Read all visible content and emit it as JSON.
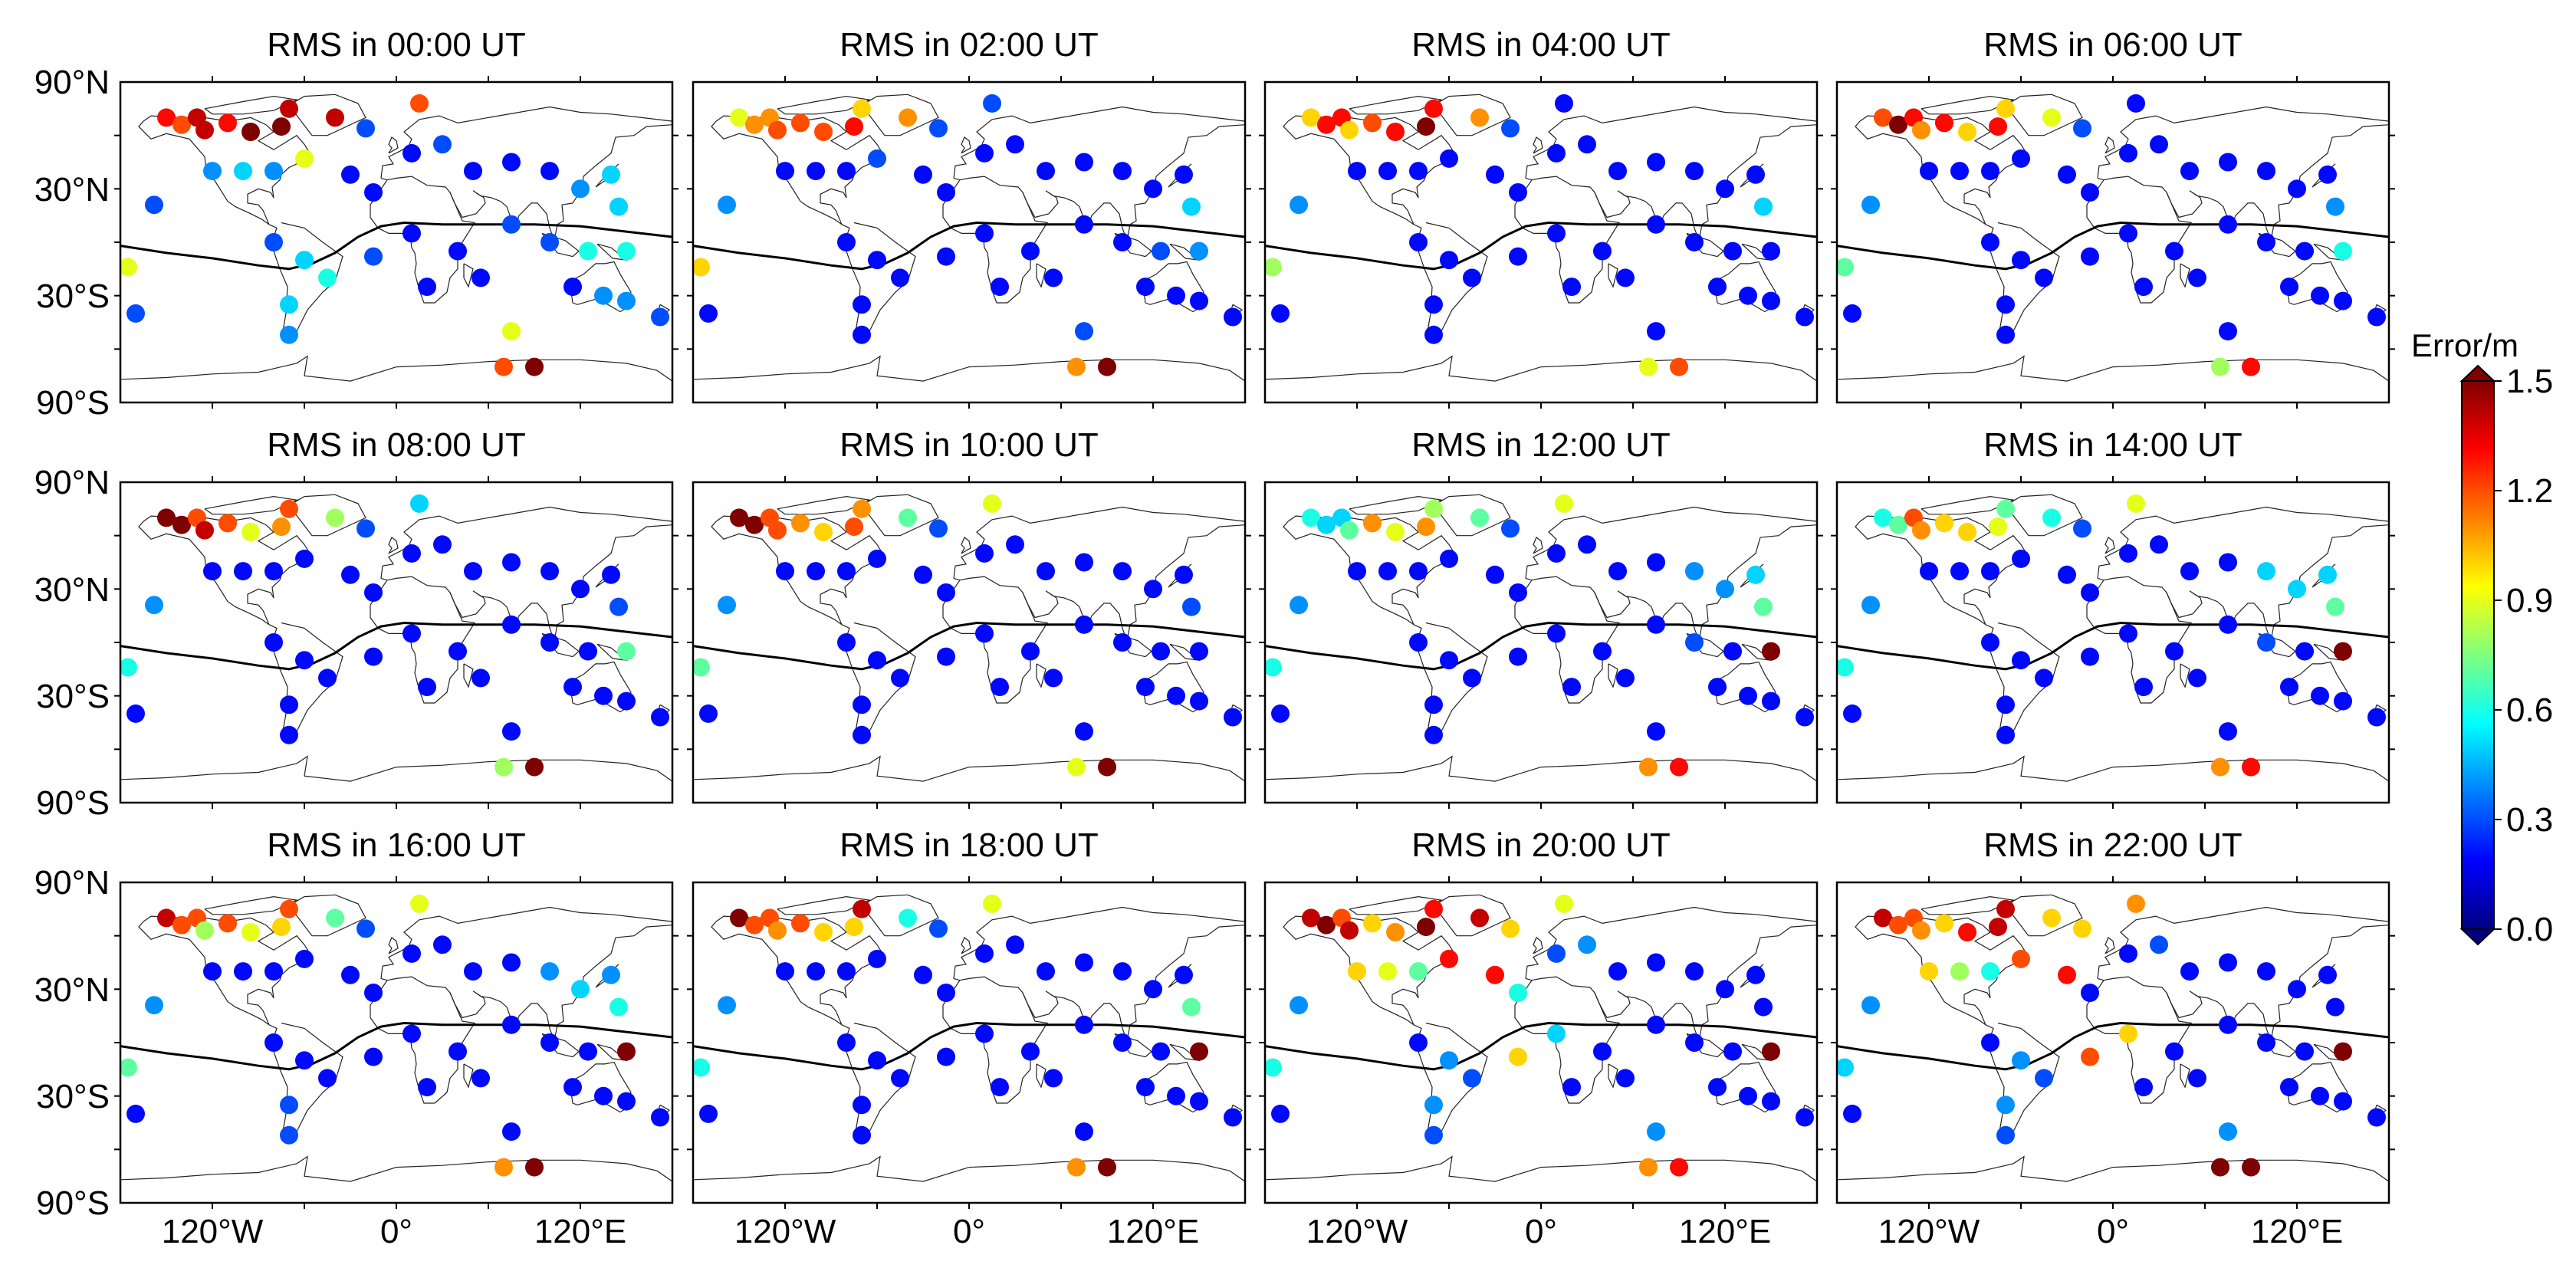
{
  "figure": {
    "panels": [
      {
        "title": "RMS in 00:00 UT"
      },
      {
        "title": "RMS in 02:00 UT"
      },
      {
        "title": "RMS in 04:00 UT"
      },
      {
        "title": "RMS in 06:00 UT"
      },
      {
        "title": "RMS in 08:00 UT"
      },
      {
        "title": "RMS in 10:00 UT"
      },
      {
        "title": "RMS in 12:00 UT"
      },
      {
        "title": "RMS in 14:00 UT"
      },
      {
        "title": "RMS in 16:00 UT"
      },
      {
        "title": "RMS in 18:00 UT"
      },
      {
        "title": "RMS in 20:00 UT"
      },
      {
        "title": "RMS in 22:00 UT"
      }
    ],
    "lat_ticks": [
      "90°N",
      "30°N",
      "30°S",
      "90°S"
    ],
    "lon_ticks": [
      "120°W",
      "0°",
      "120°E"
    ],
    "colorbar": {
      "title": "Error/m",
      "ticks": [
        "0.0",
        "0.3",
        "0.6",
        "0.9",
        "1.2",
        "1.5"
      ],
      "min": 0.0,
      "max": 1.5,
      "colormap": [
        "#00007f",
        "#0000ff",
        "#007fff",
        "#00ffff",
        "#7fff7f",
        "#ffff00",
        "#ff7f00",
        "#ff0000",
        "#7f0000"
      ]
    },
    "dip_equator_color": "#000000"
  },
  "chart_data": {
    "type": "scatter",
    "description_units": "RMS error in metres at GNSS stations",
    "xlim": [
      -180,
      180
    ],
    "ylim": [
      -90,
      90
    ],
    "stations": [
      {
        "lon": -150,
        "lat": 70,
        "v": [
          1.3,
          0.9,
          1.0,
          1.2,
          1.5,
          1.5,
          0.6,
          0.6,
          1.4,
          1.5,
          1.4,
          1.4
        ]
      },
      {
        "lon": -140,
        "lat": 66,
        "v": [
          1.2,
          1.1,
          1.3,
          1.5,
          1.5,
          1.5,
          0.5,
          0.7,
          1.2,
          1.2,
          1.5,
          1.2
        ]
      },
      {
        "lon": -130,
        "lat": 70,
        "v": [
          1.4,
          1.1,
          1.3,
          1.3,
          1.2,
          1.2,
          0.5,
          1.2,
          1.2,
          1.2,
          1.2,
          1.2
        ]
      },
      {
        "lon": -125,
        "lat": 63,
        "v": [
          1.4,
          1.2,
          1.0,
          1.1,
          1.4,
          1.2,
          0.7,
          1.1,
          0.8,
          1.1,
          1.4,
          1.1
        ]
      },
      {
        "lon": -110,
        "lat": 67,
        "v": [
          1.3,
          1.2,
          1.2,
          1.3,
          1.2,
          1.1,
          1.1,
          1.0,
          1.2,
          1.2,
          1.0,
          1.0
        ]
      },
      {
        "lon": -95,
        "lat": 62,
        "v": [
          1.5,
          1.2,
          1.3,
          1.0,
          0.9,
          1.0,
          0.9,
          1.0,
          0.9,
          1.0,
          1.1,
          1.3
        ]
      },
      {
        "lon": -75,
        "lat": 65,
        "v": [
          1.5,
          1.3,
          1.5,
          1.3,
          1.1,
          1.2,
          1.1,
          0.9,
          1.0,
          1.0,
          1.5,
          1.4
        ]
      },
      {
        "lon": -70,
        "lat": 75,
        "v": [
          1.4,
          1.0,
          1.3,
          1.0,
          1.2,
          1.1,
          0.8,
          0.7,
          1.2,
          1.4,
          1.3,
          1.4
        ]
      },
      {
        "lon": -40,
        "lat": 70,
        "v": [
          1.4,
          1.1,
          1.1,
          0.9,
          0.8,
          0.7,
          0.7,
          0.6,
          0.7,
          0.6,
          1.4,
          1.0
        ]
      },
      {
        "lon": -20,
        "lat": 64,
        "v": [
          0.3,
          0.3,
          0.3,
          0.3,
          0.3,
          0.3,
          0.3,
          0.3,
          0.3,
          0.3,
          1.0,
          1.0
        ]
      },
      {
        "lon": 15,
        "lat": 78,
        "v": [
          1.2,
          0.3,
          0.2,
          0.2,
          0.5,
          0.9,
          0.9,
          0.9,
          0.9,
          0.9,
          0.9,
          1.1
        ]
      },
      {
        "lon": -120,
        "lat": 40,
        "v": [
          0.4,
          0.2,
          0.2,
          0.2,
          0.2,
          0.2,
          0.2,
          0.2,
          0.2,
          0.2,
          1.0,
          1.0
        ]
      },
      {
        "lon": -100,
        "lat": 40,
        "v": [
          0.5,
          0.2,
          0.2,
          0.2,
          0.2,
          0.2,
          0.2,
          0.2,
          0.2,
          0.2,
          0.9,
          0.8
        ]
      },
      {
        "lon": -80,
        "lat": 40,
        "v": [
          0.4,
          0.2,
          0.2,
          0.2,
          0.2,
          0.2,
          0.2,
          0.2,
          0.2,
          0.2,
          0.7,
          0.6
        ]
      },
      {
        "lon": -60,
        "lat": 47,
        "v": [
          0.9,
          0.3,
          0.2,
          0.2,
          0.2,
          0.2,
          0.2,
          0.2,
          0.2,
          0.2,
          1.3,
          1.2
        ]
      },
      {
        "lon": -30,
        "lat": 38,
        "v": [
          0.2,
          0.2,
          0.2,
          0.2,
          0.2,
          0.2,
          0.2,
          0.2,
          0.2,
          0.2,
          1.3,
          1.3
        ]
      },
      {
        "lon": -15,
        "lat": 28,
        "v": [
          0.2,
          0.2,
          0.2,
          0.2,
          0.2,
          0.2,
          0.2,
          0.2,
          0.2,
          0.2,
          0.6,
          0.2
        ]
      },
      {
        "lon": 10,
        "lat": 50,
        "v": [
          0.2,
          0.2,
          0.2,
          0.2,
          0.2,
          0.2,
          0.2,
          0.2,
          0.2,
          0.2,
          0.3,
          0.2
        ]
      },
      {
        "lon": 30,
        "lat": 55,
        "v": [
          0.3,
          0.2,
          0.2,
          0.2,
          0.2,
          0.2,
          0.2,
          0.2,
          0.2,
          0.2,
          0.4,
          0.3
        ]
      },
      {
        "lon": 50,
        "lat": 40,
        "v": [
          0.2,
          0.2,
          0.2,
          0.2,
          0.2,
          0.2,
          0.2,
          0.2,
          0.2,
          0.2,
          0.2,
          0.2
        ]
      },
      {
        "lon": 75,
        "lat": 45,
        "v": [
          0.2,
          0.2,
          0.2,
          0.2,
          0.2,
          0.2,
          0.2,
          0.2,
          0.2,
          0.2,
          0.2,
          0.2
        ]
      },
      {
        "lon": 100,
        "lat": 40,
        "v": [
          0.2,
          0.2,
          0.2,
          0.2,
          0.2,
          0.2,
          0.4,
          0.5,
          0.4,
          0.2,
          0.2,
          0.2
        ]
      },
      {
        "lon": 120,
        "lat": 30,
        "v": [
          0.4,
          0.2,
          0.2,
          0.2,
          0.2,
          0.2,
          0.4,
          0.5,
          0.5,
          0.2,
          0.2,
          0.2
        ]
      },
      {
        "lon": 140,
        "lat": 38,
        "v": [
          0.5,
          0.2,
          0.2,
          0.2,
          0.2,
          0.2,
          0.5,
          0.5,
          0.4,
          0.2,
          0.2,
          0.2
        ]
      },
      {
        "lon": 145,
        "lat": 20,
        "v": [
          0.5,
          0.5,
          0.5,
          0.4,
          0.3,
          0.3,
          0.7,
          0.7,
          0.6,
          0.7,
          0.2,
          0.2
        ]
      },
      {
        "lon": -158,
        "lat": 21,
        "v": [
          0.3,
          0.4,
          0.4,
          0.4,
          0.4,
          0.4,
          0.4,
          0.4,
          0.4,
          0.4,
          0.4,
          0.4
        ]
      },
      {
        "lon": -175,
        "lat": -14,
        "v": [
          0.9,
          1.0,
          0.8,
          0.7,
          0.6,
          0.7,
          0.6,
          0.6,
          0.7,
          0.6,
          0.6,
          0.5
        ]
      },
      {
        "lon": -170,
        "lat": -40,
        "v": [
          0.3,
          0.2,
          0.2,
          0.2,
          0.2,
          0.2,
          0.2,
          0.2,
          0.2,
          0.2,
          0.2,
          0.2
        ]
      },
      {
        "lon": -80,
        "lat": 0,
        "v": [
          0.3,
          0.2,
          0.2,
          0.2,
          0.2,
          0.2,
          0.2,
          0.2,
          0.2,
          0.2,
          0.2,
          0.2
        ]
      },
      {
        "lon": -60,
        "lat": -10,
        "v": [
          0.5,
          0.2,
          0.2,
          0.2,
          0.2,
          0.2,
          0.2,
          0.2,
          0.2,
          0.2,
          0.4,
          0.4
        ]
      },
      {
        "lon": -45,
        "lat": -20,
        "v": [
          0.6,
          0.2,
          0.2,
          0.2,
          0.2,
          0.2,
          0.2,
          0.2,
          0.2,
          0.2,
          0.3,
          0.3
        ]
      },
      {
        "lon": -70,
        "lat": -35,
        "v": [
          0.5,
          0.2,
          0.2,
          0.2,
          0.2,
          0.2,
          0.2,
          0.2,
          0.3,
          0.2,
          0.4,
          0.4
        ]
      },
      {
        "lon": -70,
        "lat": -52,
        "v": [
          0.4,
          0.2,
          0.2,
          0.2,
          0.2,
          0.2,
          0.2,
          0.2,
          0.3,
          0.2,
          0.3,
          0.3
        ]
      },
      {
        "lon": -15,
        "lat": -8,
        "v": [
          0.3,
          0.2,
          0.2,
          0.2,
          0.2,
          0.2,
          0.2,
          0.2,
          0.2,
          0.2,
          1.0,
          1.2
        ]
      },
      {
        "lon": 10,
        "lat": 5,
        "v": [
          0.2,
          0.2,
          0.2,
          0.2,
          0.2,
          0.2,
          0.2,
          0.2,
          0.2,
          0.2,
          0.5,
          1.0
        ]
      },
      {
        "lon": 20,
        "lat": -25,
        "v": [
          0.2,
          0.2,
          0.2,
          0.2,
          0.2,
          0.2,
          0.2,
          0.2,
          0.2,
          0.2,
          0.2,
          0.2
        ]
      },
      {
        "lon": 40,
        "lat": -5,
        "v": [
          0.2,
          0.2,
          0.2,
          0.2,
          0.2,
          0.2,
          0.2,
          0.2,
          0.2,
          0.2,
          0.2,
          0.2
        ]
      },
      {
        "lon": 55,
        "lat": -20,
        "v": [
          0.2,
          0.2,
          0.2,
          0.2,
          0.2,
          0.2,
          0.2,
          0.2,
          0.2,
          0.2,
          0.2,
          0.2
        ]
      },
      {
        "lon": 75,
        "lat": 10,
        "v": [
          0.3,
          0.2,
          0.2,
          0.2,
          0.2,
          0.2,
          0.2,
          0.2,
          0.2,
          0.2,
          0.2,
          0.2
        ]
      },
      {
        "lon": 100,
        "lat": 0,
        "v": [
          0.3,
          0.2,
          0.2,
          0.2,
          0.2,
          0.2,
          0.3,
          0.3,
          0.2,
          0.2,
          0.2,
          0.2
        ]
      },
      {
        "lon": 125,
        "lat": -5,
        "v": [
          0.6,
          0.3,
          0.2,
          0.2,
          0.2,
          0.2,
          0.2,
          0.2,
          0.2,
          0.2,
          0.2,
          0.2
        ]
      },
      {
        "lon": 150,
        "lat": -5,
        "v": [
          0.6,
          0.4,
          0.2,
          0.6,
          0.7,
          0.2,
          1.5,
          1.5,
          1.5,
          1.5,
          1.5,
          1.5
        ]
      },
      {
        "lon": 115,
        "lat": -25,
        "v": [
          0.2,
          0.2,
          0.2,
          0.2,
          0.2,
          0.2,
          0.2,
          0.2,
          0.2,
          0.2,
          0.2,
          0.2
        ]
      },
      {
        "lon": 135,
        "lat": -30,
        "v": [
          0.4,
          0.2,
          0.2,
          0.2,
          0.2,
          0.2,
          0.2,
          0.2,
          0.2,
          0.2,
          0.2,
          0.2
        ]
      },
      {
        "lon": 150,
        "lat": -33,
        "v": [
          0.4,
          0.2,
          0.2,
          0.2,
          0.2,
          0.2,
          0.2,
          0.2,
          0.2,
          0.2,
          0.2,
          0.2
        ]
      },
      {
        "lon": 172,
        "lat": -42,
        "v": [
          0.3,
          0.2,
          0.2,
          0.2,
          0.2,
          0.2,
          0.2,
          0.2,
          0.2,
          0.2,
          0.2,
          0.2
        ]
      },
      {
        "lon": 75,
        "lat": -50,
        "v": [
          0.9,
          0.3,
          0.2,
          0.2,
          0.2,
          0.2,
          0.2,
          0.2,
          0.2,
          0.2,
          0.4,
          0.4
        ]
      },
      {
        "lon": 70,
        "lat": -70,
        "v": [
          1.2,
          1.1,
          0.9,
          0.8,
          0.8,
          0.9,
          1.1,
          1.1,
          1.1,
          1.1,
          1.1,
          1.5
        ]
      },
      {
        "lon": 90,
        "lat": -70,
        "v": [
          1.5,
          1.5,
          1.2,
          1.3,
          1.5,
          1.5,
          1.3,
          1.3,
          1.5,
          1.5,
          1.3,
          1.5
        ]
      }
    ]
  }
}
